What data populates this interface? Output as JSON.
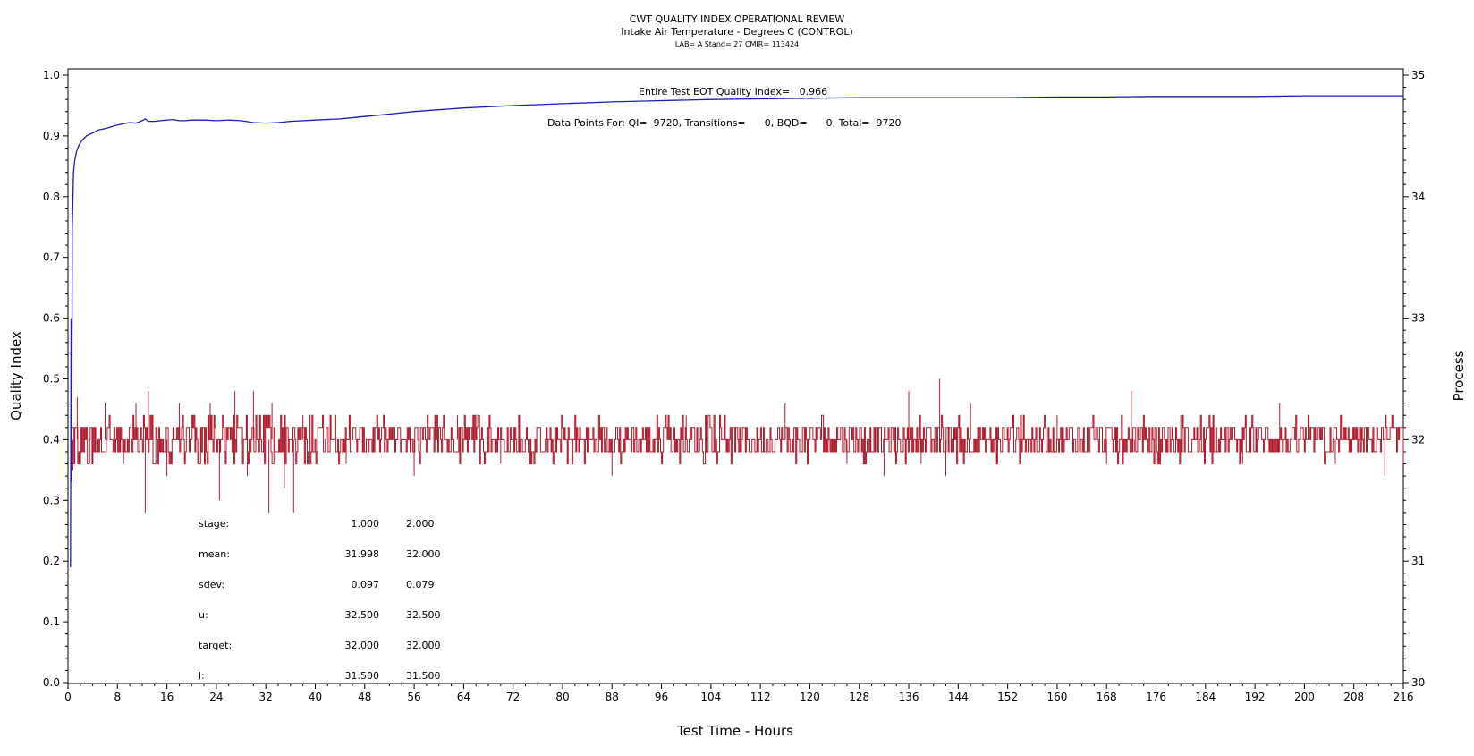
{
  "chart_data": {
    "type": "line",
    "title": "CWT QUALITY INDEX OPERATIONAL REVIEW",
    "subtitle": "Intake Air Temperature - Degrees C (CONTROL)",
    "subtitle2": "LAB= A Stand= 27 CMIR= 113424",
    "xlabel": "Test Time - Hours",
    "ylabel_left": "Quality Index",
    "ylabel_right": "Process",
    "xlim": [
      0,
      216
    ],
    "ylim_left": [
      0.0,
      1.0
    ],
    "ylim_right": [
      30,
      35
    ],
    "x_ticks": [
      0,
      8,
      16,
      24,
      32,
      40,
      48,
      56,
      64,
      72,
      80,
      88,
      96,
      104,
      112,
      120,
      128,
      136,
      144,
      152,
      160,
      168,
      176,
      184,
      192,
      200,
      208,
      216
    ],
    "y_ticks_left": [
      "0.0",
      "0.1",
      "0.2",
      "0.3",
      "0.4",
      "0.5",
      "0.6",
      "0.7",
      "0.8",
      "0.9",
      "1.0"
    ],
    "y_ticks_right": [
      "30",
      "31",
      "32",
      "33",
      "34",
      "35"
    ],
    "annotation_qi": "Entire Test EOT Quality Index=   0.966",
    "annotation_points": "Data Points For: QI=  9720, Transitions=      0, BQD=      0, Total=  9720",
    "quality_index_series": {
      "name": "Quality Index",
      "color": "#1c1cb0",
      "x": [
        0.4,
        0.5,
        0.6,
        0.7,
        0.9,
        1.1,
        1.4,
        1.8,
        2.3,
        3,
        4,
        5,
        6,
        7,
        8,
        9,
        10,
        11,
        12,
        12.5,
        13,
        14,
        15,
        16,
        17,
        18,
        19,
        20,
        22,
        24,
        26,
        28,
        30,
        32,
        34,
        36,
        40,
        44,
        48,
        52,
        56,
        60,
        64,
        72,
        80,
        88,
        96,
        104,
        112,
        120,
        128,
        136,
        144,
        152,
        160,
        168,
        176,
        184,
        192,
        200,
        208,
        216
      ],
      "y": [
        0.19,
        0.6,
        0.33,
        0.75,
        0.84,
        0.86,
        0.875,
        0.885,
        0.893,
        0.9,
        0.905,
        0.91,
        0.912,
        0.915,
        0.918,
        0.92,
        0.922,
        0.921,
        0.925,
        0.928,
        0.924,
        0.924,
        0.925,
        0.926,
        0.927,
        0.925,
        0.925,
        0.926,
        0.926,
        0.925,
        0.926,
        0.925,
        0.922,
        0.921,
        0.922,
        0.924,
        0.926,
        0.928,
        0.932,
        0.936,
        0.94,
        0.943,
        0.946,
        0.95,
        0.953,
        0.956,
        0.958,
        0.96,
        0.961,
        0.962,
        0.963,
        0.963,
        0.963,
        0.963,
        0.964,
        0.964,
        0.965,
        0.965,
        0.965,
        0.966,
        0.966,
        0.966
      ]
    },
    "process_series": {
      "name": "Process",
      "color": "#b01c2c",
      "x_range": [
        0.5,
        216
      ],
      "mean": 32.0,
      "band": [
        31.9,
        32.1
      ],
      "spikes": [
        {
          "x": 0.8,
          "y": 31.75
        },
        {
          "x": 1.5,
          "y": 32.35
        },
        {
          "x": 3.5,
          "y": 31.8
        },
        {
          "x": 6,
          "y": 32.3
        },
        {
          "x": 9,
          "y": 31.8
        },
        {
          "x": 11,
          "y": 32.3
        },
        {
          "x": 12.5,
          "y": 31.4
        },
        {
          "x": 13,
          "y": 32.4
        },
        {
          "x": 16,
          "y": 31.7
        },
        {
          "x": 18,
          "y": 32.3
        },
        {
          "x": 21,
          "y": 31.8
        },
        {
          "x": 23,
          "y": 32.3
        },
        {
          "x": 24.5,
          "y": 31.5
        },
        {
          "x": 27,
          "y": 32.4
        },
        {
          "x": 29,
          "y": 31.7
        },
        {
          "x": 30,
          "y": 32.4
        },
        {
          "x": 32.5,
          "y": 31.4
        },
        {
          "x": 33,
          "y": 32.3
        },
        {
          "x": 35,
          "y": 31.6
        },
        {
          "x": 36.5,
          "y": 31.4
        },
        {
          "x": 38,
          "y": 32.2
        },
        {
          "x": 45,
          "y": 31.8
        },
        {
          "x": 50,
          "y": 32.1
        },
        {
          "x": 56,
          "y": 31.7
        },
        {
          "x": 63,
          "y": 32.2
        },
        {
          "x": 70,
          "y": 31.8
        },
        {
          "x": 88,
          "y": 31.7
        },
        {
          "x": 100,
          "y": 32.2
        },
        {
          "x": 116,
          "y": 32.3
        },
        {
          "x": 126,
          "y": 31.8
        },
        {
          "x": 132,
          "y": 31.7
        },
        {
          "x": 136,
          "y": 32.4
        },
        {
          "x": 138,
          "y": 31.8
        },
        {
          "x": 141,
          "y": 32.5
        },
        {
          "x": 142,
          "y": 31.7
        },
        {
          "x": 146,
          "y": 32.3
        },
        {
          "x": 150,
          "y": 31.8
        },
        {
          "x": 160,
          "y": 32.2
        },
        {
          "x": 168,
          "y": 31.8
        },
        {
          "x": 172,
          "y": 32.4
        },
        {
          "x": 172.5,
          "y": 31.9
        },
        {
          "x": 180,
          "y": 32.2
        },
        {
          "x": 190,
          "y": 31.8
        },
        {
          "x": 196,
          "y": 32.3
        },
        {
          "x": 205,
          "y": 31.8
        },
        {
          "x": 213,
          "y": 31.7
        }
      ]
    },
    "stats_table": {
      "rows": [
        {
          "label": "stage:",
          "v1": "1.000",
          "v2": "2.000"
        },
        {
          "label": "mean:",
          "v1": "31.998",
          "v2": "32.000"
        },
        {
          "label": "sdev:",
          "v1": "0.097",
          "v2": "0.079"
        },
        {
          "label": "u:",
          "v1": "32.500",
          "v2": "32.500"
        },
        {
          "label": "target:",
          "v1": "32.000",
          "v2": "32.000"
        },
        {
          "label": "l:",
          "v1": "31.500",
          "v2": "31.500"
        }
      ]
    },
    "grid": false,
    "legend": "none"
  }
}
